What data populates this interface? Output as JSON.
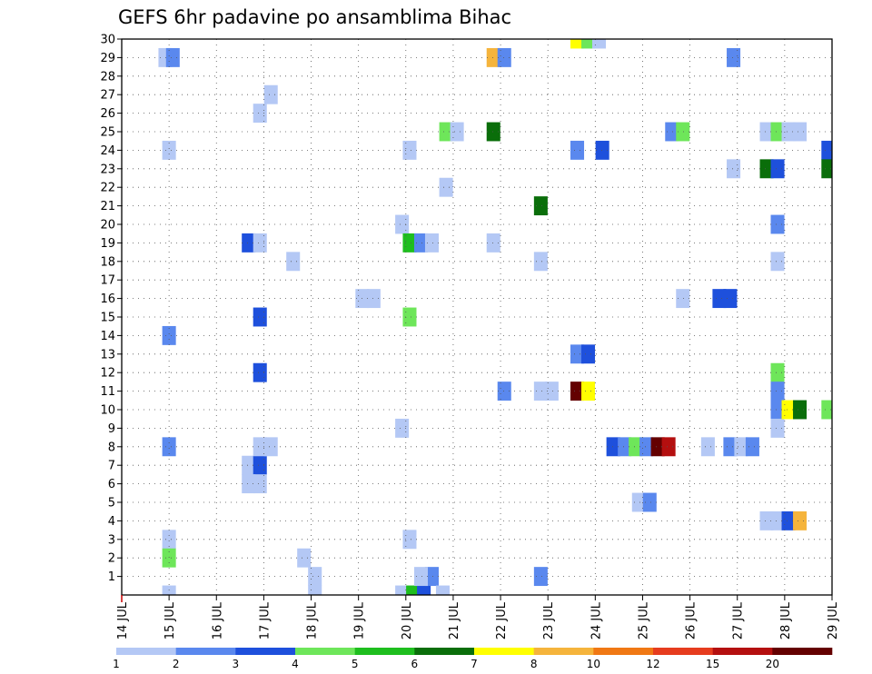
{
  "chart_data": {
    "type": "heatmap",
    "title": "GEFS 6hr padavine po ansamblima Bihac",
    "x_tick_labels": [
      "14 JUL",
      "15 JUL",
      "16 JUL",
      "17 JUL",
      "18 JUL",
      "19 JUL",
      "20 JUL",
      "21 JUL",
      "22 JUL",
      "23 JUL",
      "24 JUL",
      "25 JUL",
      "26 JUL",
      "27 JUL",
      "28 JUL",
      "29 JUL"
    ],
    "y_tick_labels": [
      "1",
      "2",
      "3",
      "4",
      "5",
      "6",
      "7",
      "8",
      "9",
      "10",
      "11",
      "12",
      "13",
      "14",
      "15",
      "16",
      "17",
      "18",
      "19",
      "20",
      "21",
      "22",
      "23",
      "24",
      "25",
      "26",
      "27",
      "28",
      "29",
      "30"
    ],
    "x_range_days": [
      14,
      29
    ],
    "y_range": [
      0,
      30
    ],
    "grid": true,
    "colorbar": {
      "placement": "bottom",
      "labels": [
        "1",
        "2",
        "3",
        "4",
        "5",
        "6",
        "7",
        "8",
        "10",
        "12",
        "15",
        "20"
      ],
      "colors": [
        "#b4c8f5",
        "#5a88ee",
        "#1e50dc",
        "#6ee65a",
        "#1ebe1e",
        "#0a6e0a",
        "#ffff00",
        "#f5b43c",
        "#f07814",
        "#e63c1e",
        "#b40f0f",
        "#640000"
      ]
    },
    "cells_note_format": "[day, member, class_index]",
    "cells": [
      [
        14.92,
        29,
        0
      ],
      [
        15.08,
        29,
        1
      ],
      [
        15.0,
        24,
        0
      ],
      [
        15.0,
        14,
        1
      ],
      [
        15.0,
        8,
        1
      ],
      [
        15.0,
        3,
        0
      ],
      [
        15.0,
        2,
        3
      ],
      [
        15.0,
        0,
        0
      ],
      [
        16.68,
        19,
        2
      ],
      [
        16.92,
        19,
        0
      ],
      [
        16.68,
        7,
        0
      ],
      [
        16.92,
        7,
        2
      ],
      [
        16.68,
        6,
        0
      ],
      [
        16.92,
        6,
        0
      ],
      [
        17.15,
        27,
        0
      ],
      [
        16.92,
        26,
        0
      ],
      [
        16.92,
        15,
        2
      ],
      [
        16.92,
        12,
        2
      ],
      [
        16.92,
        8,
        0
      ],
      [
        17.15,
        8,
        0
      ],
      [
        17.62,
        18,
        0
      ],
      [
        17.85,
        2,
        0
      ],
      [
        18.08,
        1,
        0
      ],
      [
        18.08,
        0,
        0
      ],
      [
        19.08,
        16,
        0
      ],
      [
        19.32,
        16,
        0
      ],
      [
        19.92,
        20,
        0
      ],
      [
        20.08,
        24,
        0
      ],
      [
        20.08,
        19,
        4
      ],
      [
        20.32,
        19,
        1
      ],
      [
        20.55,
        19,
        0
      ],
      [
        20.08,
        15,
        3
      ],
      [
        19.92,
        9,
        0
      ],
      [
        20.08,
        3,
        0
      ],
      [
        19.92,
        0,
        0
      ],
      [
        20.15,
        0,
        4
      ],
      [
        20.38,
        0,
        2
      ],
      [
        20.55,
        1,
        1
      ],
      [
        20.32,
        1,
        0
      ],
      [
        20.78,
        0,
        0
      ],
      [
        20.85,
        25,
        3
      ],
      [
        21.08,
        25,
        0
      ],
      [
        20.85,
        22,
        0
      ],
      [
        21.85,
        29,
        7
      ],
      [
        22.08,
        29,
        1
      ],
      [
        21.85,
        25,
        5
      ],
      [
        21.85,
        19,
        0
      ],
      [
        22.08,
        11,
        1
      ],
      [
        22.85,
        21,
        5
      ],
      [
        22.85,
        18,
        0
      ],
      [
        22.85,
        11,
        0
      ],
      [
        23.08,
        11,
        0
      ],
      [
        22.85,
        1,
        1
      ],
      [
        23.62,
        30,
        6
      ],
      [
        23.85,
        30,
        3
      ],
      [
        24.08,
        30,
        0
      ],
      [
        23.62,
        24,
        1
      ],
      [
        24.15,
        24,
        2
      ],
      [
        23.62,
        13,
        1
      ],
      [
        23.85,
        13,
        2
      ],
      [
        23.62,
        11,
        11
      ],
      [
        23.85,
        11,
        6
      ],
      [
        24.38,
        8,
        2
      ],
      [
        24.62,
        8,
        1
      ],
      [
        24.85,
        8,
        3
      ],
      [
        25.08,
        8,
        1
      ],
      [
        25.32,
        8,
        11
      ],
      [
        25.55,
        8,
        10
      ],
      [
        24.92,
        5,
        0
      ],
      [
        25.15,
        5,
        1
      ],
      [
        25.62,
        25,
        1
      ],
      [
        25.85,
        25,
        3
      ],
      [
        25.85,
        16,
        0
      ],
      [
        26.38,
        8,
        0
      ],
      [
        26.62,
        16,
        2
      ],
      [
        26.85,
        16,
        2
      ],
      [
        26.92,
        29,
        1
      ],
      [
        26.92,
        23,
        0
      ],
      [
        26.85,
        8,
        1
      ],
      [
        27.08,
        8,
        0
      ],
      [
        27.32,
        8,
        1
      ],
      [
        27.62,
        25,
        0
      ],
      [
        27.85,
        25,
        3
      ],
      [
        28.08,
        25,
        0
      ],
      [
        28.32,
        25,
        0
      ],
      [
        27.62,
        23,
        5
      ],
      [
        27.85,
        23,
        2
      ],
      [
        27.85,
        20,
        1
      ],
      [
        27.85,
        18,
        0
      ],
      [
        27.85,
        12,
        3
      ],
      [
        27.85,
        11,
        1
      ],
      [
        27.85,
        10,
        1
      ],
      [
        27.85,
        9,
        0
      ],
      [
        28.08,
        10,
        6
      ],
      [
        28.32,
        10,
        5
      ],
      [
        27.62,
        4,
        0
      ],
      [
        27.85,
        4,
        0
      ],
      [
        28.08,
        4,
        2
      ],
      [
        28.32,
        4,
        7
      ],
      [
        28.92,
        24,
        2
      ],
      [
        28.92,
        23,
        5
      ],
      [
        28.92,
        10,
        3
      ]
    ]
  }
}
